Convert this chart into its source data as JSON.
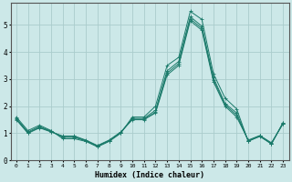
{
  "xlabel": "Humidex (Indice chaleur)",
  "ylabel": "",
  "background_color": "#cce8e8",
  "grid_color": "#aacccc",
  "line_color": "#1a7a6a",
  "xlim": [
    -0.5,
    23.5
  ],
  "ylim": [
    0,
    5.8
  ],
  "yticks": [
    0,
    1,
    2,
    3,
    4,
    5
  ],
  "xticks": [
    0,
    1,
    2,
    3,
    4,
    5,
    6,
    7,
    8,
    9,
    10,
    11,
    12,
    13,
    14,
    15,
    16,
    17,
    18,
    19,
    20,
    21,
    22,
    23
  ],
  "series": [
    [
      1.6,
      1.1,
      1.3,
      1.1,
      0.8,
      0.8,
      0.7,
      0.5,
      0.7,
      1.0,
      1.6,
      1.6,
      2.0,
      3.5,
      3.8,
      5.5,
      5.2,
      3.2,
      2.3,
      1.9,
      0.7,
      0.9,
      0.6,
      1.4
    ],
    [
      1.55,
      1.05,
      1.25,
      1.08,
      0.85,
      0.85,
      0.72,
      0.52,
      0.72,
      1.02,
      1.55,
      1.55,
      1.85,
      3.3,
      3.65,
      5.3,
      4.95,
      3.05,
      2.1,
      1.75,
      0.72,
      0.88,
      0.62,
      1.38
    ],
    [
      1.5,
      1.0,
      1.2,
      1.05,
      0.9,
      0.9,
      0.75,
      0.55,
      0.75,
      1.05,
      1.5,
      1.5,
      1.75,
      3.15,
      3.5,
      5.15,
      4.8,
      2.9,
      2.0,
      1.6,
      0.75,
      0.92,
      0.65,
      1.35
    ],
    [
      1.52,
      1.02,
      1.22,
      1.06,
      0.88,
      0.88,
      0.73,
      0.53,
      0.73,
      1.03,
      1.52,
      1.52,
      1.78,
      3.22,
      3.57,
      5.22,
      4.87,
      2.97,
      2.05,
      1.67,
      0.73,
      0.9,
      0.63,
      1.36
    ]
  ]
}
